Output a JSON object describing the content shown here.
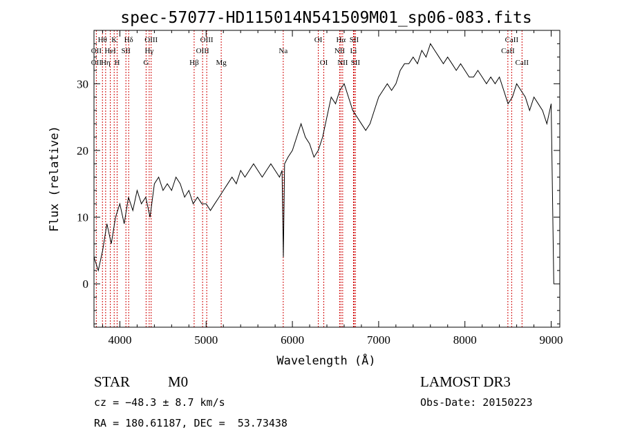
{
  "chart_data": {
    "type": "line",
    "title": "spec-57077-HD115014N541509M01_sp06-083.fits",
    "xlabel": "Wavelength (Å)",
    "ylabel": "Flux (relative)",
    "xlim": [
      3700,
      9100
    ],
    "ylim": [
      -6.5,
      38
    ],
    "xticks": [
      4000,
      5000,
      6000,
      7000,
      8000,
      9000
    ],
    "yticks": [
      0,
      10,
      20,
      30
    ],
    "grid": false,
    "series": [
      {
        "x": [
          3700,
          3750,
          3800,
          3850,
          3900,
          3950,
          4000,
          4050,
          4100,
          4150,
          4200,
          4250,
          4300,
          4350,
          4400,
          4450,
          4500,
          4550,
          4600,
          4650,
          4700,
          4750,
          4800,
          4850,
          4900,
          4950,
          5000,
          5050,
          5100,
          5150,
          5200,
          5250,
          5300,
          5350,
          5400,
          5450,
          5500,
          5550,
          5600,
          5650,
          5700,
          5750,
          5800,
          5850,
          5880,
          5895,
          5910,
          5950,
          6000,
          6050,
          6100,
          6150,
          6200,
          6250,
          6300,
          6350,
          6400,
          6450,
          6500,
          6550,
          6600,
          6650,
          6700,
          6750,
          6800,
          6850,
          6900,
          6950,
          7000,
          7050,
          7100,
          7150,
          7200,
          7250,
          7300,
          7350,
          7400,
          7450,
          7500,
          7550,
          7600,
          7650,
          7700,
          7750,
          7800,
          7850,
          7900,
          7950,
          8000,
          8050,
          8100,
          8150,
          8200,
          8250,
          8300,
          8350,
          8400,
          8450,
          8500,
          8550,
          8600,
          8650,
          8700,
          8750,
          8800,
          8850,
          8900,
          8950,
          9000,
          9030
        ],
        "y": [
          4,
          2,
          5,
          9,
          6,
          10,
          12,
          9,
          13,
          11,
          14,
          12,
          13,
          10,
          15,
          16,
          14,
          15,
          14,
          16,
          15,
          13,
          14,
          12,
          13,
          12,
          12,
          11,
          12,
          13,
          14,
          15,
          16,
          15,
          17,
          16,
          17,
          18,
          17,
          16,
          17,
          18,
          17,
          16,
          17,
          4,
          18,
          19,
          20,
          22,
          24,
          22,
          21,
          19,
          20,
          22,
          25,
          28,
          27,
          29,
          30,
          28,
          26,
          25,
          24,
          23,
          24,
          26,
          28,
          29,
          30,
          29,
          30,
          32,
          33,
          33,
          34,
          33,
          35,
          34,
          36,
          35,
          34,
          33,
          34,
          33,
          32,
          33,
          32,
          31,
          31,
          32,
          31,
          30,
          31,
          30,
          31,
          29,
          27,
          28,
          30,
          29,
          28,
          26,
          28,
          27,
          26,
          24,
          27,
          0
        ]
      }
    ],
    "line_labels": [
      {
        "text": "Hθ",
        "x": 3798,
        "row": 0
      },
      {
        "text": "OII",
        "x": 3727,
        "row": 1
      },
      {
        "text": "OII",
        "x": 3727,
        "row": 2
      },
      {
        "text": "K",
        "x": 3934,
        "row": 0
      },
      {
        "text": "HeI",
        "x": 3889,
        "row": 1
      },
      {
        "text": "Hη",
        "x": 3835,
        "row": 2
      },
      {
        "text": "H",
        "x": 3968,
        "row": 2
      },
      {
        "text": "Hδ",
        "x": 4102,
        "row": 0
      },
      {
        "text": "SII",
        "x": 4070,
        "row": 1
      },
      {
        "text": "OIII",
        "x": 4363,
        "row": 0
      },
      {
        "text": "Hγ",
        "x": 4340,
        "row": 1
      },
      {
        "text": "G",
        "x": 4304,
        "row": 2
      },
      {
        "text": "OIII",
        "x": 5007,
        "row": 0
      },
      {
        "text": "OIII",
        "x": 4959,
        "row": 1
      },
      {
        "text": "Hβ",
        "x": 4861,
        "row": 2
      },
      {
        "text": "Mg",
        "x": 5175,
        "row": 2
      },
      {
        "text": "Na",
        "x": 5894,
        "row": 1
      },
      {
        "text": "OI",
        "x": 6300,
        "row": 0
      },
      {
        "text": "OI",
        "x": 6364,
        "row": 2
      },
      {
        "text": "Hα",
        "x": 6563,
        "row": 0
      },
      {
        "text": "SII",
        "x": 6716,
        "row": 0
      },
      {
        "text": "NII",
        "x": 6548,
        "row": 1
      },
      {
        "text": "Li",
        "x": 6708,
        "row": 1
      },
      {
        "text": "NII",
        "x": 6583,
        "row": 2
      },
      {
        "text": "SII",
        "x": 6731,
        "row": 2
      },
      {
        "text": "CaII",
        "x": 8542,
        "row": 0
      },
      {
        "text": "CaII",
        "x": 8498,
        "row": 1
      },
      {
        "text": "CaII",
        "x": 8662,
        "row": 2
      }
    ],
    "line_markers": [
      3727,
      3798,
      3835,
      3889,
      3934,
      3968,
      4070,
      4102,
      4304,
      4340,
      4363,
      4861,
      4959,
      5007,
      5175,
      5894,
      6300,
      6364,
      6548,
      6563,
      6583,
      6708,
      6716,
      6731,
      8498,
      8542,
      8662
    ],
    "marker_color": "#d00000",
    "line_color": "#000000"
  },
  "info": {
    "class": "STAR",
    "subclass": "M0",
    "survey": "LAMOST DR3",
    "cz": "cz = −48.3 ± 8.7 km/s",
    "obs_date": "Obs-Date: 20150223",
    "coords": "RA = 180.61187, DEC =  53.73438"
  }
}
